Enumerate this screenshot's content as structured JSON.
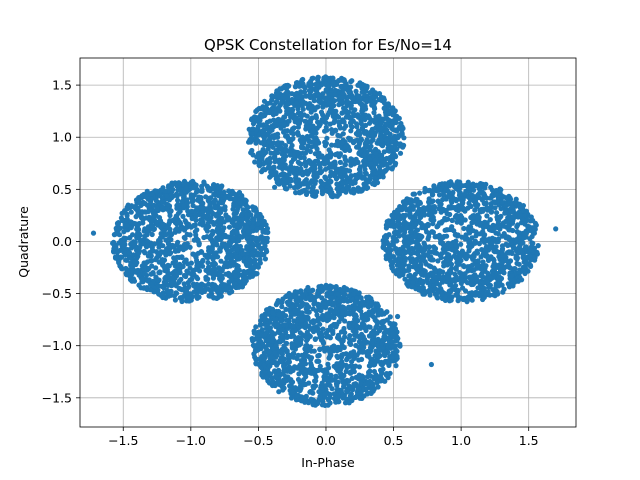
{
  "chart_data": {
    "type": "scatter",
    "title": "QPSK Constellation for Es/No=14",
    "xlabel": "In-Phase",
    "ylabel": "Quadrature",
    "xlim": [
      -1.82,
      1.85
    ],
    "ylim": [
      -1.78,
      1.76
    ],
    "xticks": [
      -1.5,
      -1.0,
      -0.5,
      0.0,
      0.5,
      1.0,
      1.5
    ],
    "xtick_labels": [
      "−1.5",
      "−1.0",
      "−0.5",
      "0.0",
      "0.5",
      "1.0",
      "1.5"
    ],
    "yticks": [
      -1.5,
      -1.0,
      -0.5,
      0.0,
      0.5,
      1.0,
      1.5
    ],
    "ytick_labels": [
      "−1.5",
      "−1.0",
      "−0.5",
      "0.0",
      "0.5",
      "1.0",
      "1.5"
    ],
    "grid": true,
    "marker_color": "#1f77b4",
    "clusters": [
      {
        "center": [
          1.0,
          0.0
        ],
        "spread_x": 0.58,
        "spread_y": 0.58
      },
      {
        "center": [
          -1.0,
          0.0
        ],
        "spread_x": 0.58,
        "spread_y": 0.58
      },
      {
        "center": [
          0.0,
          1.0
        ],
        "spread_x": 0.58,
        "spread_y": 0.58
      },
      {
        "center": [
          0.0,
          -1.0
        ],
        "spread_x": 0.55,
        "spread_y": 0.58
      }
    ],
    "outliers": [
      [
        -1.72,
        0.08
      ],
      [
        1.7,
        0.12
      ],
      [
        0.78,
        -1.18
      ],
      [
        0.53,
        -0.72
      ],
      [
        -0.64,
        0.47
      ],
      [
        0.38,
        -0.6
      ],
      [
        -0.68,
        -0.2
      ],
      [
        -0.38,
        0.52
      ]
    ]
  }
}
